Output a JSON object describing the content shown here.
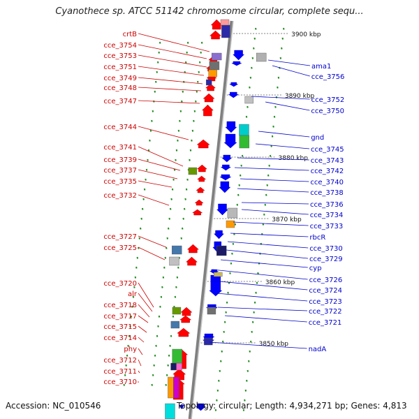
{
  "title": "Cyanothece sp. ATCC 51142 chromosome circular, complete sequ...",
  "accession": "Accession: NC_010546",
  "summary": "Topology: circular; Length: 4,934,271 bp; Genes: 4,813",
  "colors": {
    "forward_label": "#cc0000",
    "reverse_label": "#0000cc",
    "forward_gene": "#ff0000",
    "reverse_gene": "#0000ff",
    "backbone": "#808080",
    "tick": "#228b22"
  },
  "kbp_marks": [
    "3900 kbp",
    "3890 kbp",
    "3880 kbp",
    "3870 kbp",
    "3860 kbp",
    "3850 kbp"
  ],
  "left_labels": [
    "crtB",
    "cce_3754",
    "cce_3753",
    "cce_3751",
    "cce_3749",
    "cce_3748",
    "cce_3747",
    "cce_3744",
    "cce_3741",
    "cce_3739",
    "cce_3737",
    "cce_3735",
    "cce_3732",
    "cce_3727",
    "cce_3725",
    "cce_3720",
    "alr",
    "cce_3718",
    "cce_3717",
    "cce_3715",
    "cce_3714",
    "phy",
    "cce_3712",
    "cce_3711",
    "cce_3710"
  ],
  "right_labels": [
    "ama1",
    "cce_3756",
    "cce_3752",
    "cce_3750",
    "gnd",
    "cce_3745",
    "cce_3743",
    "cce_3742",
    "cce_3740",
    "cce_3738",
    "cce_3736",
    "cce_3734",
    "cce_3733",
    "rbcR",
    "cce_3730",
    "cce_3729",
    "cyp",
    "cce_3726",
    "cce_3724",
    "cce_3723",
    "cce_3722",
    "cce_3721",
    "nadA"
  ]
}
